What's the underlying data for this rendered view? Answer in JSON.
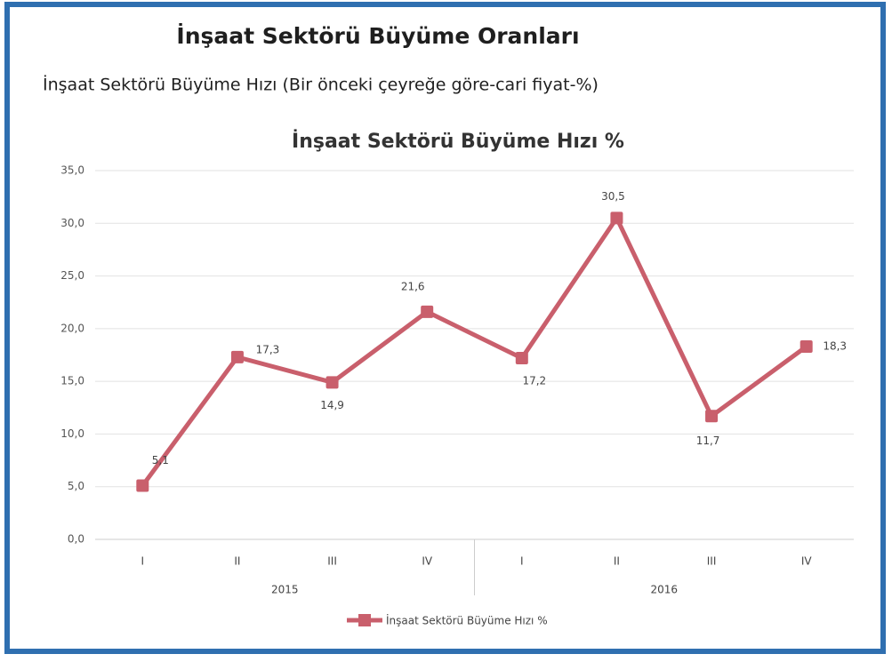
{
  "header": {
    "title": "İnşaat Sektörü Büyüme Oranları",
    "subtitle": "İnşaat Sektörü Büyüme Hızı (Bir önceki çeyreğe göre-cari fiyat-%)"
  },
  "chart_data": {
    "type": "line",
    "title": "İnşaat Sektörü Büyüme Hızı %",
    "categories": [
      "I",
      "II",
      "III",
      "IV",
      "I",
      "II",
      "III",
      "IV"
    ],
    "x_groups": [
      "2015",
      "2016"
    ],
    "series": [
      {
        "name": "İnşaat Sektörü Büyüme Hızı %",
        "color": "#c95f6c",
        "values": [
          5.1,
          17.3,
          14.9,
          21.6,
          17.2,
          30.5,
          11.7,
          18.3
        ],
        "value_labels": [
          "5,1",
          "17,3",
          "14,9",
          "21,6",
          "17,2",
          "30,5",
          "11,7",
          "18,3"
        ]
      }
    ],
    "ylim": [
      0,
      35
    ],
    "yticks": [
      {
        "value": 0,
        "label": "0,0"
      },
      {
        "value": 5,
        "label": "5,0"
      },
      {
        "value": 10,
        "label": "10,0"
      },
      {
        "value": 15,
        "label": "15,0"
      },
      {
        "value": 20,
        "label": "20,0"
      },
      {
        "value": 25,
        "label": "25,0"
      },
      {
        "value": 30,
        "label": "30,0"
      },
      {
        "value": 35,
        "label": "35,0"
      }
    ],
    "grid": true,
    "legend": "bottom"
  }
}
